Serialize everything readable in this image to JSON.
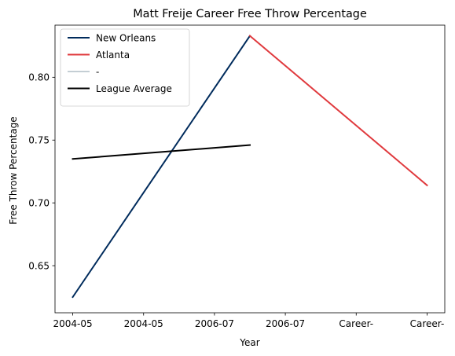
{
  "chart_data": {
    "type": "line",
    "title": "Matt Freije Career Free Throw Percentage",
    "xlabel": "Year",
    "ylabel": "Free Throw Percentage",
    "categories": [
      "2004-05",
      "2004-05",
      "2006-07",
      "2006-07",
      "Career-",
      "Career-"
    ],
    "ylim": [
      0.6125,
      0.8415
    ],
    "yticks": [
      0.65,
      0.7,
      0.75,
      0.8
    ],
    "ytick_labels": [
      "0.65",
      "0.70",
      "0.75",
      "0.80"
    ],
    "grid": false,
    "legend_position": "top-left",
    "series": [
      {
        "name": "New Orleans",
        "color": "#002B5C",
        "points": [
          {
            "x": 0,
            "y": 0.625
          },
          {
            "x": 2.5,
            "y": 0.833
          }
        ]
      },
      {
        "name": "Atlanta",
        "color": "#E03A3E",
        "points": [
          {
            "x": 2.5,
            "y": 0.833
          },
          {
            "x": 5,
            "y": 0.714
          }
        ]
      },
      {
        "name": "-",
        "color": "#C4CED4",
        "points": []
      },
      {
        "name": "League Average",
        "color": "#000000",
        "points": [
          {
            "x": 0,
            "y": 0.735
          },
          {
            "x": 2.5,
            "y": 0.746
          }
        ]
      }
    ]
  }
}
